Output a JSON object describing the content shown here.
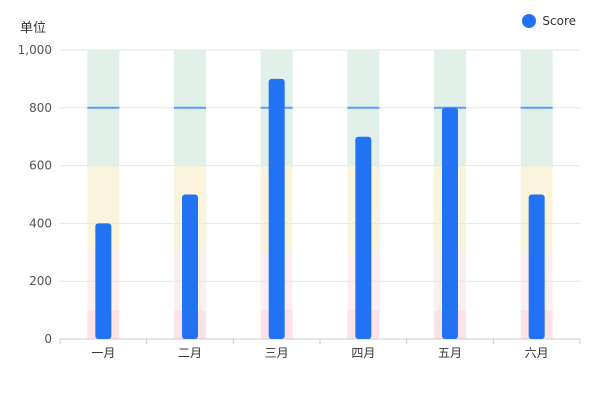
{
  "unit_label": "单位",
  "legend": [
    {
      "name": "Score",
      "color": "#2173f4"
    }
  ],
  "chart_data": {
    "type": "bar",
    "ylabel": "单位",
    "categories": [
      "一月",
      "二月",
      "三月",
      "四月",
      "五月",
      "六月"
    ],
    "series": [
      {
        "name": "Score",
        "values": [
          400,
          500,
          900,
          700,
          800,
          500
        ],
        "color": "#2173f4"
      }
    ],
    "ylim": [
      0,
      1000
    ],
    "yticks": [
      0,
      200,
      400,
      600,
      800,
      1000
    ],
    "ytick_labels": [
      "0",
      "200",
      "400",
      "600",
      "800",
      "1,000"
    ],
    "target_line": {
      "value": 800,
      "color": "#5b9bff"
    },
    "background_bands": [
      {
        "from": 0,
        "to": 100,
        "color": "#fde3e7"
      },
      {
        "from": 100,
        "to": 300,
        "color": "#fdeef0"
      },
      {
        "from": 300,
        "to": 600,
        "color": "#fbf4dc"
      },
      {
        "from": 600,
        "to": 1000,
        "color": "#e1f1ea"
      }
    ],
    "grid": true,
    "legend_position": "top-right"
  }
}
